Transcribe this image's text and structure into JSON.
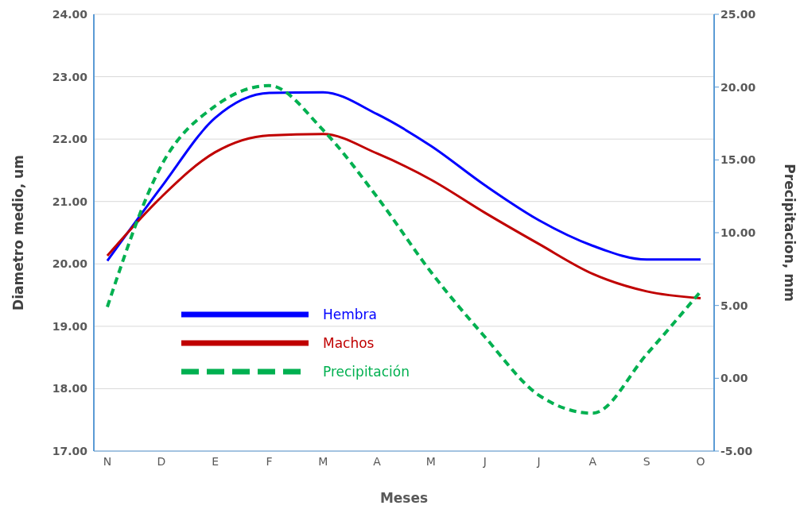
{
  "chart_data": {
    "type": "line",
    "xlabel": "Meses",
    "ylabel": "Diametro medio, um",
    "y2label": "Precipitacion, mm",
    "categories": [
      "N",
      "D",
      "E",
      "F",
      "M",
      "A",
      "M",
      "J",
      "J",
      "A",
      "S",
      "O"
    ],
    "ylim": [
      17,
      24
    ],
    "yticks": [
      {
        "value": 17,
        "label": "17.00"
      },
      {
        "value": 18,
        "label": "18.00"
      },
      {
        "value": 19,
        "label": "19.00"
      },
      {
        "value": 20,
        "label": "20.00"
      },
      {
        "value": 21,
        "label": "21.00"
      },
      {
        "value": 22,
        "label": "22.00"
      },
      {
        "value": 23,
        "label": "23.00"
      },
      {
        "value": 24,
        "label": "24.00"
      }
    ],
    "y2lim": [
      -5,
      25
    ],
    "y2ticks": [
      {
        "value": -5,
        "label": "-5.00"
      },
      {
        "value": 0,
        "label": "0.00"
      },
      {
        "value": 5,
        "label": "5.00"
      },
      {
        "value": 10,
        "label": "10.00"
      },
      {
        "value": 15,
        "label": "15.00"
      },
      {
        "value": 20,
        "label": "20.00"
      },
      {
        "value": 25,
        "label": "25.00"
      }
    ],
    "grid": "y",
    "legend": "bottom left",
    "marker": "none",
    "series": [
      {
        "name": "Hembra",
        "color": "#0000ff",
        "line_style": "solid",
        "values": [
          20.05,
          21.23,
          22.34,
          22.74,
          22.75,
          22.4,
          21.89,
          21.26,
          20.7,
          20.29,
          20.07,
          20.07
        ]
      },
      {
        "name": "Machos",
        "color": "#c00000",
        "line_style": "solid",
        "values": [
          20.13,
          21.07,
          21.79,
          22.06,
          22.08,
          21.77,
          21.35,
          20.82,
          20.32,
          19.84,
          19.56,
          19.45
        ]
      },
      {
        "name": "Precipitación",
        "color": "#00b050",
        "line_style": "dashed",
        "axis": "y2",
        "values": [
          4.9,
          14.6,
          18.7,
          20.1,
          17.05,
          12.46,
          7.3,
          2.84,
          -1.16,
          -2.4,
          1.65,
          5.97
        ]
      }
    ]
  }
}
